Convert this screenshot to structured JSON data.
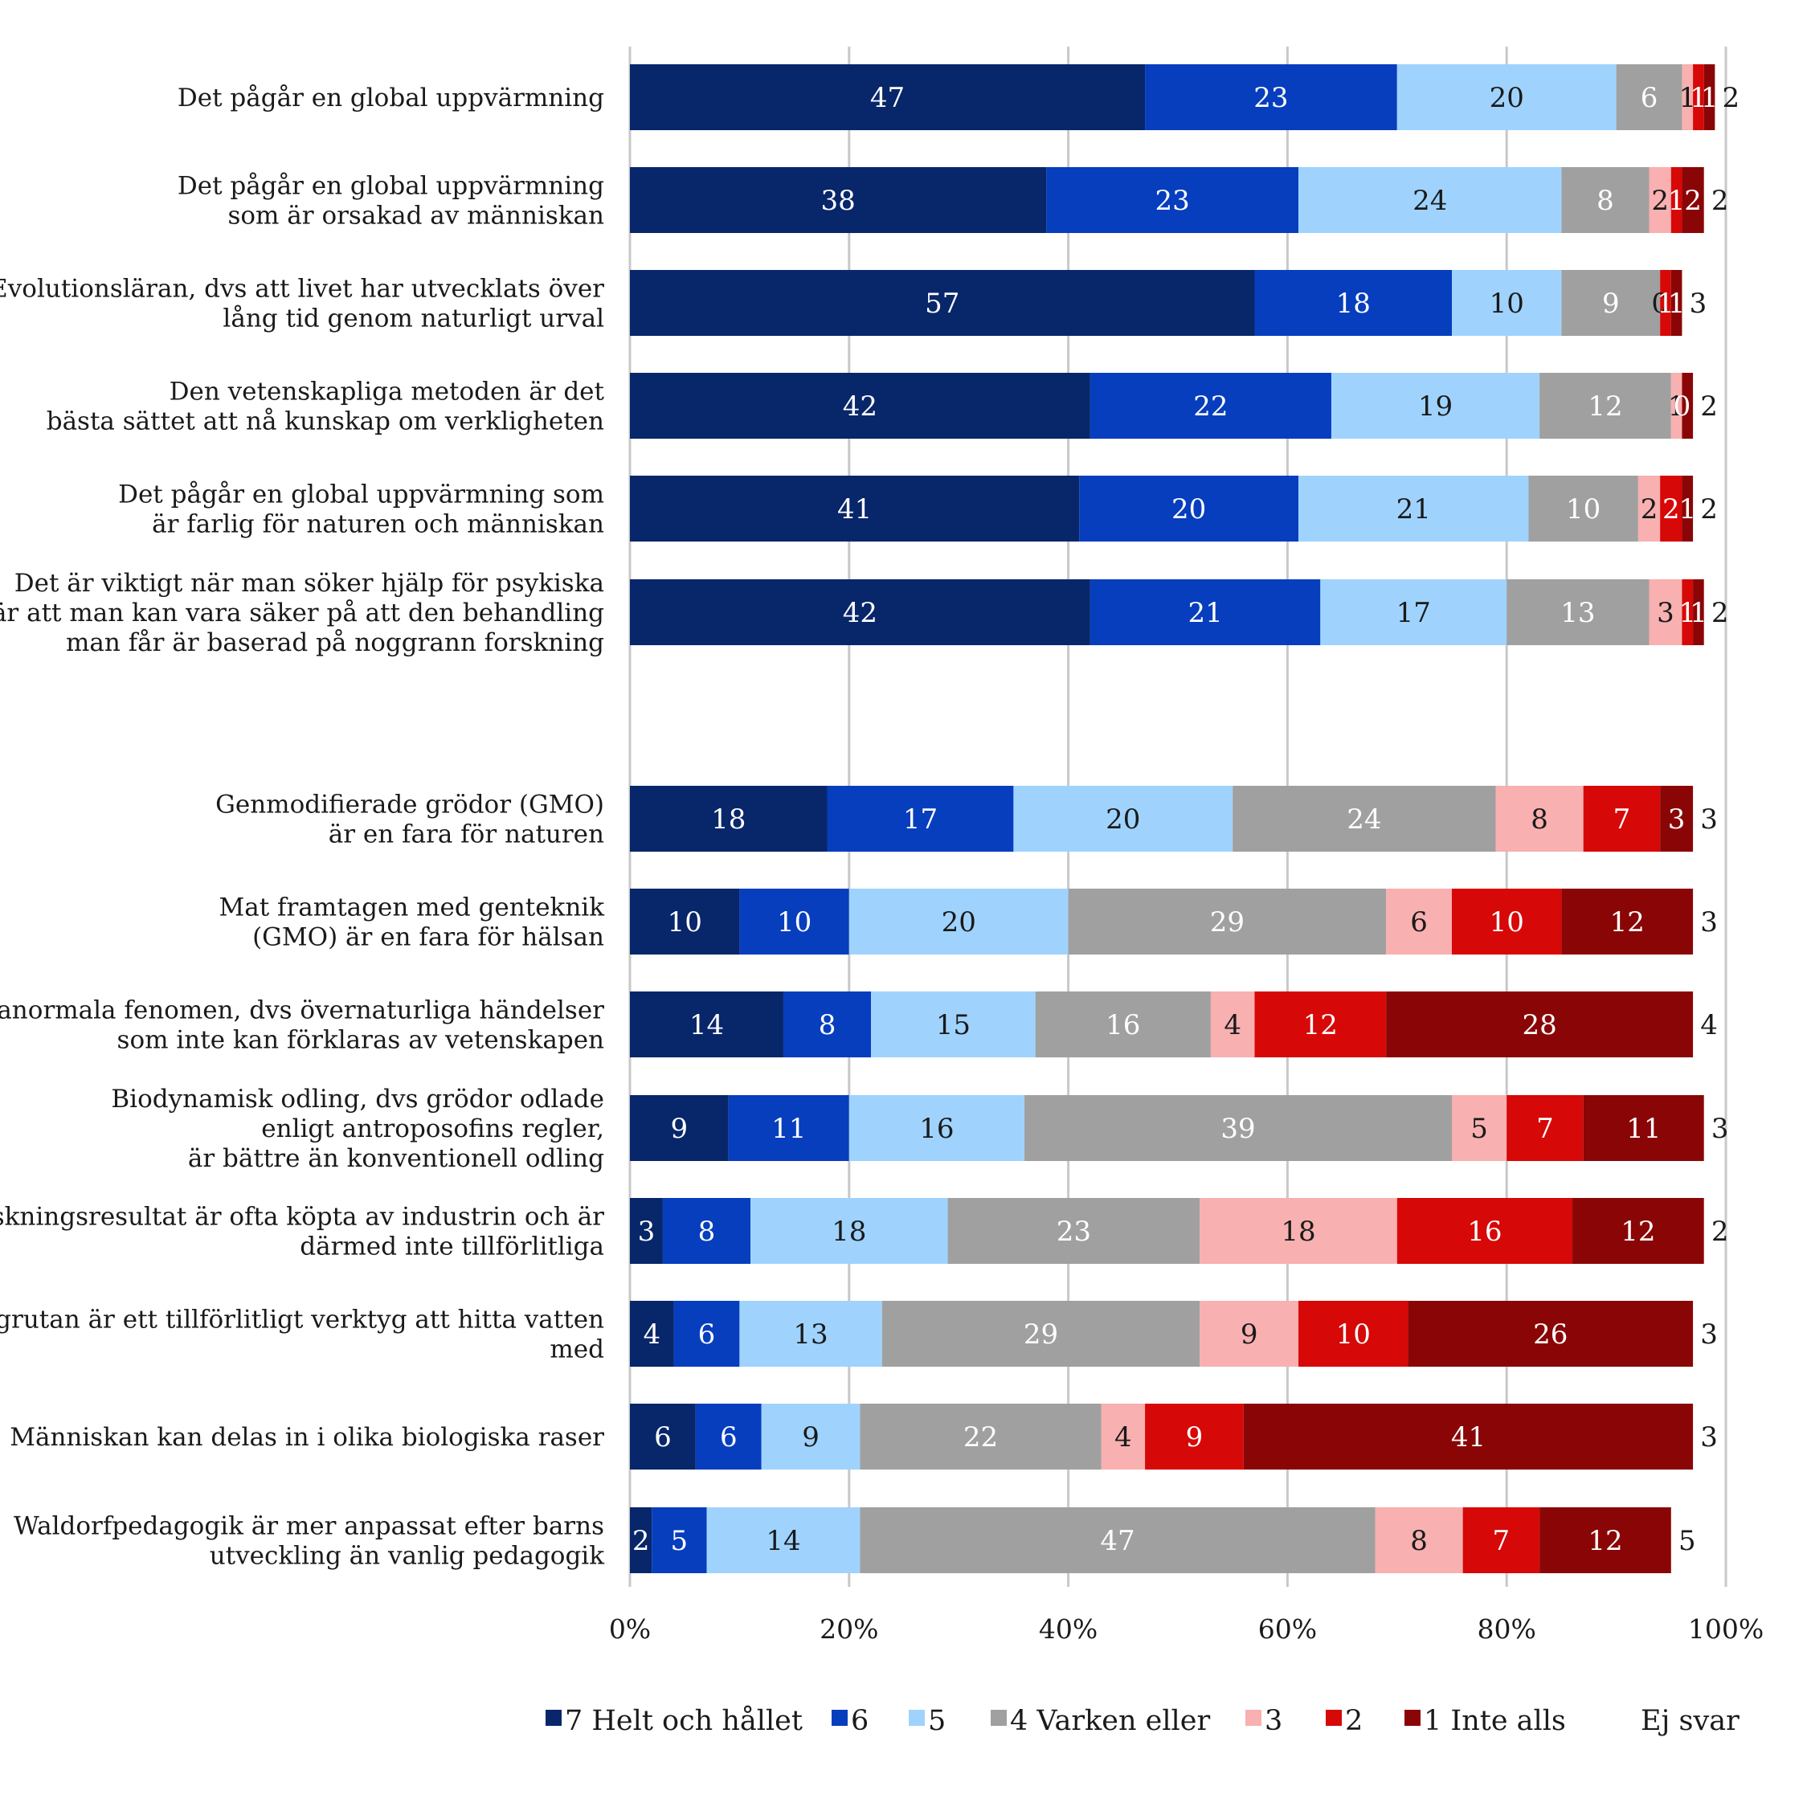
{
  "chart_data": {
    "type": "bar",
    "orientation": "horizontal",
    "stacked": true,
    "xlim": [
      0,
      100
    ],
    "x_ticks": [
      "0%",
      "20%",
      "40%",
      "60%",
      "80%",
      "100%"
    ],
    "grid": true,
    "legend_position": "bottom",
    "series": [
      {
        "name": "7 Helt och hållet",
        "color": "#08266a",
        "label_color": "#ffffff"
      },
      {
        "name": "6",
        "color": "#063ebe",
        "label_color": "#ffffff"
      },
      {
        "name": "5",
        "color": "#9fd3fd",
        "label_color": "#1a1a1a"
      },
      {
        "name": "4 Varken eller",
        "color": "#a0a0a0",
        "label_color": "#ffffff"
      },
      {
        "name": "3",
        "color": "#f8b0b0",
        "label_color": "#1a1a1a"
      },
      {
        "name": "2",
        "color": "#d70808",
        "label_color": "#ffffff"
      },
      {
        "name": "1 Inte alls",
        "color": "#8a0606",
        "label_color": "#ffffff"
      },
      {
        "name": "Ej svar",
        "color": "#ffffff",
        "label_color": "#1a1a1a"
      }
    ],
    "rows": [
      {
        "label": [
          "Det pågår en global uppvärmning"
        ],
        "values": [
          47,
          23,
          20,
          6,
          1,
          1,
          1,
          2
        ],
        "segment_labels": [
          "47",
          "23",
          "20",
          "6",
          "1",
          "1",
          "1",
          "2"
        ]
      },
      {
        "label": [
          "Det pågår en global uppvärmning",
          "som är orsakad av människan"
        ],
        "values": [
          38,
          23,
          24,
          8,
          2,
          1,
          2,
          2
        ],
        "segment_labels": [
          "38",
          "23",
          "24",
          "8",
          "2",
          "1",
          "2",
          "2"
        ]
      },
      {
        "label": [
          "Evolutionsläran, dvs att livet har utvecklats över",
          "lång tid genom naturligt urval"
        ],
        "values": [
          57,
          18,
          10,
          9,
          0,
          1,
          1,
          3
        ],
        "segment_labels": [
          "57",
          "18",
          "10",
          "9",
          "0",
          "1",
          "1",
          "3"
        ]
      },
      {
        "label": [
          "Den vetenskapliga metoden är det",
          "bästa sättet att nå kunskap om verkligheten"
        ],
        "values": [
          42,
          22,
          19,
          12,
          1,
          0,
          1,
          2
        ],
        "segment_labels": [
          "42",
          "22",
          "19",
          "12",
          "1",
          "0",
          "",
          "2"
        ]
      },
      {
        "label": [
          "Det pågår en global uppvärmning som",
          "är farlig för naturen och människan"
        ],
        "values": [
          41,
          20,
          21,
          10,
          2,
          2,
          1,
          2
        ],
        "segment_labels": [
          "41",
          "20",
          "21",
          "10",
          "2",
          "2",
          "1",
          "2"
        ]
      },
      {
        "label": [
          "Det är viktigt när man söker hjälp för psykiska",
          "besvär att man kan vara säker på att den behandling",
          "man får är baserad på noggrann forskning"
        ],
        "values": [
          42,
          21,
          17,
          13,
          3,
          1,
          1,
          2
        ],
        "segment_labels": [
          "42",
          "21",
          "17",
          "13",
          "3",
          "1",
          "1",
          "2"
        ]
      },
      {
        "label": [
          "Genmodifierade grödor (GMO)",
          "är en fara för naturen"
        ],
        "values": [
          18,
          17,
          20,
          24,
          8,
          7,
          3,
          3
        ],
        "segment_labels": [
          "18",
          "17",
          "20",
          "24",
          "8",
          "7",
          "3",
          "3"
        ]
      },
      {
        "label": [
          "Mat framtagen med genteknik",
          "(GMO) är en fara för hälsan"
        ],
        "values": [
          10,
          10,
          20,
          29,
          6,
          10,
          12,
          3
        ],
        "segment_labels": [
          "10",
          "10",
          "20",
          "29",
          "6",
          "10",
          "12",
          "3"
        ]
      },
      {
        "label": [
          "Paranormala fenomen, dvs övernaturliga händelser",
          "som inte kan förklaras av vetenskapen"
        ],
        "values": [
          14,
          8,
          15,
          16,
          4,
          12,
          28,
          4
        ],
        "segment_labels": [
          "14",
          "8",
          "15",
          "16",
          "4",
          "12",
          "28",
          "4"
        ]
      },
      {
        "label": [
          "Biodynamisk odling, dvs grödor odlade",
          "enligt antroposofins regler,",
          "är bättre än konventionell odling"
        ],
        "values": [
          9,
          11,
          16,
          39,
          5,
          7,
          11,
          3
        ],
        "segment_labels": [
          "9",
          "11",
          "16",
          "39",
          "5",
          "7",
          "11",
          "3"
        ]
      },
      {
        "label": [
          "Forskningsresultat är ofta köpta av industrin och är",
          "därmed inte tillförlitliga"
        ],
        "values": [
          3,
          8,
          18,
          23,
          18,
          16,
          12,
          2
        ],
        "segment_labels": [
          "3",
          "8",
          "18",
          "23",
          "18",
          "16",
          "12",
          "2"
        ]
      },
      {
        "label": [
          "Slagrutan är ett tillförlitligt verktyg att hitta vatten",
          "med"
        ],
        "values": [
          4,
          6,
          13,
          29,
          9,
          10,
          26,
          3
        ],
        "segment_labels": [
          "4",
          "6",
          "13",
          "29",
          "9",
          "10",
          "26",
          "3"
        ]
      },
      {
        "label": [
          "Människan kan delas in i olika biologiska raser"
        ],
        "values": [
          6,
          6,
          9,
          22,
          4,
          9,
          41,
          3
        ],
        "segment_labels": [
          "6",
          "6",
          "9",
          "22",
          "4",
          "9",
          "41",
          "3"
        ]
      },
      {
        "label": [
          "Waldorfpedagogik är mer anpassat efter barns",
          "utveckling än vanlig pedagogik"
        ],
        "values": [
          2,
          5,
          14,
          47,
          8,
          7,
          12,
          5
        ],
        "segment_labels": [
          "2",
          "5",
          "14",
          "47",
          "8",
          "7",
          "12",
          "5"
        ]
      }
    ]
  }
}
